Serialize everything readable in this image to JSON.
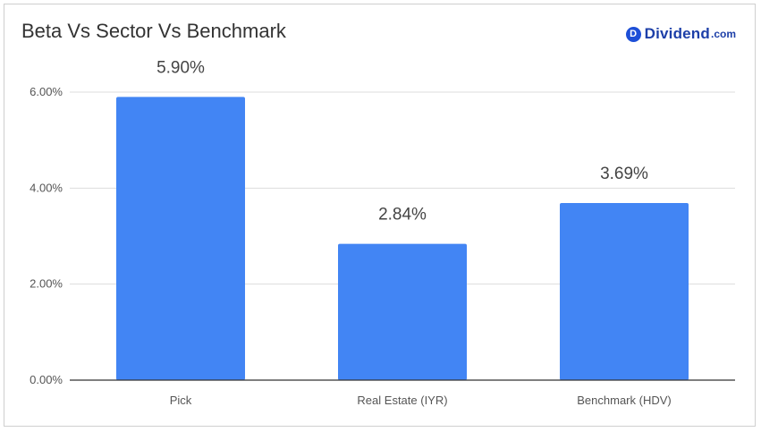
{
  "brand": {
    "badge": "D",
    "name": "Dividend",
    "tld": ".com"
  },
  "chart_data": {
    "type": "bar",
    "title": "Beta Vs Sector Vs Benchmark",
    "categories": [
      "Pick",
      "Real Estate (IYR)",
      "Benchmark (HDV)"
    ],
    "values": [
      5.9,
      2.84,
      3.69
    ],
    "value_labels": [
      "5.90%",
      "2.84%",
      "3.69%"
    ],
    "ylim": [
      0,
      6
    ],
    "yticks": [
      0,
      2,
      4,
      6
    ],
    "ytick_labels": [
      "0.00%",
      "2.00%",
      "4.00%",
      "6.00%"
    ],
    "xlabel": "",
    "ylabel": "",
    "grid": true,
    "legend": "none",
    "colors": {
      "bar": "#4285f4",
      "grid": "#dddddd",
      "axis": "#333333"
    }
  }
}
